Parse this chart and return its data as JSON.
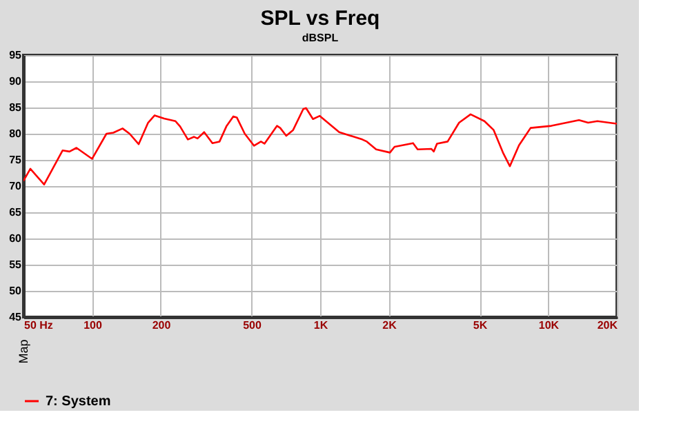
{
  "chart_data": {
    "type": "line",
    "title": "SPL vs Freq",
    "ylabel": "dBSPL",
    "x": [
      50,
      53.6,
      61.6,
      74.2,
      79.6,
      85.4,
      100,
      115.6,
      124,
      136,
      146,
      160,
      176,
      188,
      207,
      232,
      243,
      263,
      280,
      290,
      310,
      337,
      362,
      388,
      416,
      431,
      467,
      513,
      550,
      570,
      647,
      668,
      710,
      761,
      843,
      867,
      930,
      996,
      1212,
      1530,
      1602,
      1760,
      2023,
      2119,
      2555,
      2676,
      3076,
      3150,
      3253,
      3622,
      4066,
      4567,
      5251,
      5765,
      6331,
      6789,
      7447,
      8370,
      10320,
      13645,
      14962,
      16431,
      20000
    ],
    "series": [
      {
        "name": "7: System",
        "color": "#ff0000",
        "values": [
          71.0,
          73.3,
          70.3,
          76.8,
          76.6,
          77.3,
          75.2,
          80.0,
          80.2,
          81.0,
          80.0,
          78.0,
          82.1,
          83.5,
          82.9,
          82.4,
          81.4,
          78.9,
          79.4,
          79.1,
          80.3,
          78.2,
          78.5,
          81.4,
          83.3,
          83.1,
          80.0,
          77.7,
          78.5,
          78.1,
          81.5,
          81.1,
          79.6,
          80.7,
          84.7,
          84.9,
          82.8,
          83.4,
          80.3,
          78.9,
          78.5,
          77.0,
          76.4,
          77.5,
          78.2,
          77.0,
          77.1,
          76.6,
          78.1,
          78.5,
          82.1,
          83.7,
          82.4,
          80.7,
          76.4,
          73.8,
          77.8,
          81.1,
          81.5,
          82.6,
          82.1,
          82.4,
          81.9
        ]
      }
    ],
    "log": "x",
    "xlim": [
      50,
      20000
    ],
    "xticks": [
      {
        "value": 50,
        "label": "50 Hz"
      },
      100,
      200,
      500,
      {
        "value": 1000,
        "label": "1K"
      },
      {
        "value": 2000,
        "label": "2K"
      },
      {
        "value": 5000,
        "label": "5K"
      },
      {
        "value": 10000,
        "label": "10K"
      },
      {
        "value": 20000,
        "label": "20K"
      }
    ],
    "ylim": [
      45,
      95
    ],
    "yticks": [
      45,
      50,
      55,
      60,
      65,
      70,
      75,
      80,
      85,
      90,
      95
    ],
    "grid": true,
    "legend": "bottom",
    "line_style": "solid",
    "marker": "none",
    "annotations": [
      "Map"
    ]
  }
}
